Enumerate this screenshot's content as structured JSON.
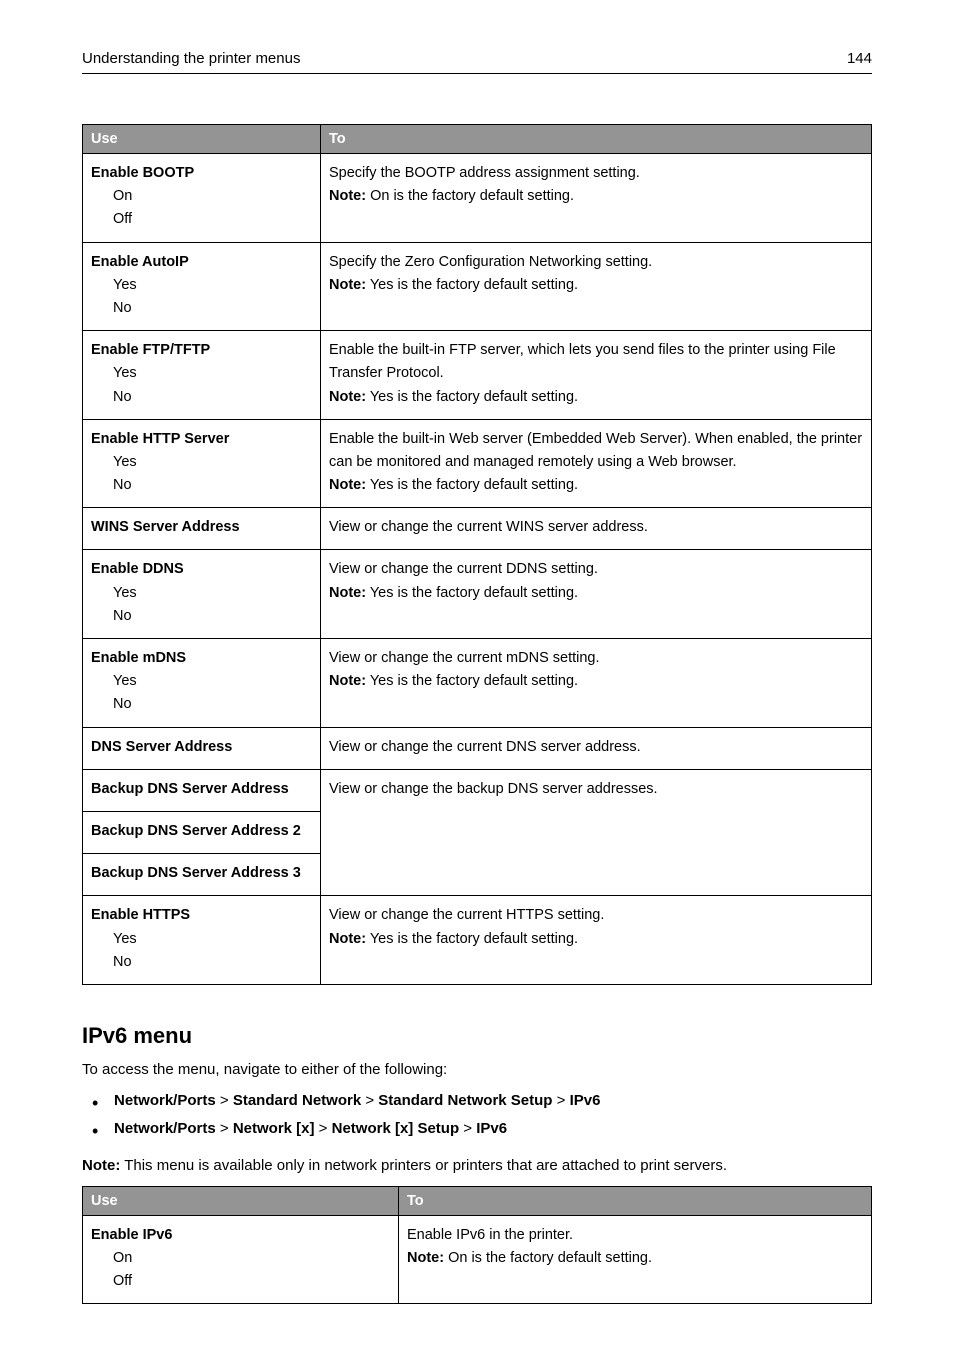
{
  "header": {
    "title": "Understanding the printer menus",
    "page_number": "144"
  },
  "table1": {
    "col_use": "Use",
    "col_to": "To",
    "rows": [
      {
        "name": "Enable BOOTP",
        "opts": [
          "On",
          "Off"
        ],
        "desc": "Specify the BOOTP address assignment setting.",
        "note_label": "Note:",
        "note": " On is the factory default setting."
      },
      {
        "name": "Enable AutoIP",
        "opts": [
          "Yes",
          "No"
        ],
        "desc": "Specify the Zero Configuration Networking setting.",
        "note_label": "Note:",
        "note": " Yes is the factory default setting."
      },
      {
        "name": "Enable FTP/TFTP",
        "opts": [
          "Yes",
          "No"
        ],
        "desc": "Enable the built-in FTP server, which lets you send files to the printer using File Transfer Protocol.",
        "note_label": "Note:",
        "note": " Yes is the factory default setting."
      },
      {
        "name": "Enable HTTP Server",
        "opts": [
          "Yes",
          "No"
        ],
        "desc": "Enable the built-in Web server (Embedded Web Server). When enabled, the printer can be monitored and managed remotely using a Web browser.",
        "note_label": "Note:",
        "note": " Yes is the factory default setting."
      },
      {
        "name": "WINS Server Address",
        "opts": [],
        "desc": "View or change the current WINS server address.",
        "note_label": "",
        "note": ""
      },
      {
        "name": "Enable DDNS",
        "opts": [
          "Yes",
          "No"
        ],
        "desc": "View or change the current DDNS setting.",
        "note_label": "Note:",
        "note": " Yes is the factory default setting."
      },
      {
        "name": "Enable mDNS",
        "opts": [
          "Yes",
          "No"
        ],
        "desc": "View or change the current mDNS setting.",
        "note_label": "Note:",
        "note": " Yes is the factory default setting."
      },
      {
        "name": "DNS Server Address",
        "opts": [],
        "desc": "View or change the current DNS server address.",
        "note_label": "",
        "note": ""
      }
    ],
    "backup_group": {
      "r1": "Backup DNS Server Address",
      "r2": "Backup DNS Server Address 2",
      "r3": "Backup DNS Server Address 3",
      "desc": "View or change the backup DNS server addresses."
    },
    "last_row": {
      "name": "Enable HTTPS",
      "opts": [
        "Yes",
        "No"
      ],
      "desc": "View or change the current HTTPS setting.",
      "note_label": "Note:",
      "note": " Yes is the factory default setting."
    }
  },
  "section2": {
    "heading": "IPv6 menu",
    "intro": "To access the menu, navigate to either of the following:",
    "path1": {
      "p1": "Network/Ports",
      "s1": " > ",
      "p2": "Standard Network",
      "s2": " > ",
      "p3": "Standard Network Setup",
      "s3": " > ",
      "p4": "IPv6"
    },
    "path2": {
      "p1": "Network/Ports",
      "s1": " > ",
      "p2": "Network [x]",
      "s2": " > ",
      "p3": "Network [x] Setup",
      "s3": " > ",
      "p4": "IPv6"
    },
    "note_label": "Note:",
    "note_text": " This menu is available only in network printers or printers that are attached to print servers."
  },
  "table2": {
    "col_use": "Use",
    "col_to": "To",
    "row": {
      "name": "Enable IPv6",
      "opts": [
        "On",
        "Off"
      ],
      "desc": "Enable IPv6 in the printer.",
      "note_label": "Note:",
      "note": " On is the factory default setting."
    }
  }
}
